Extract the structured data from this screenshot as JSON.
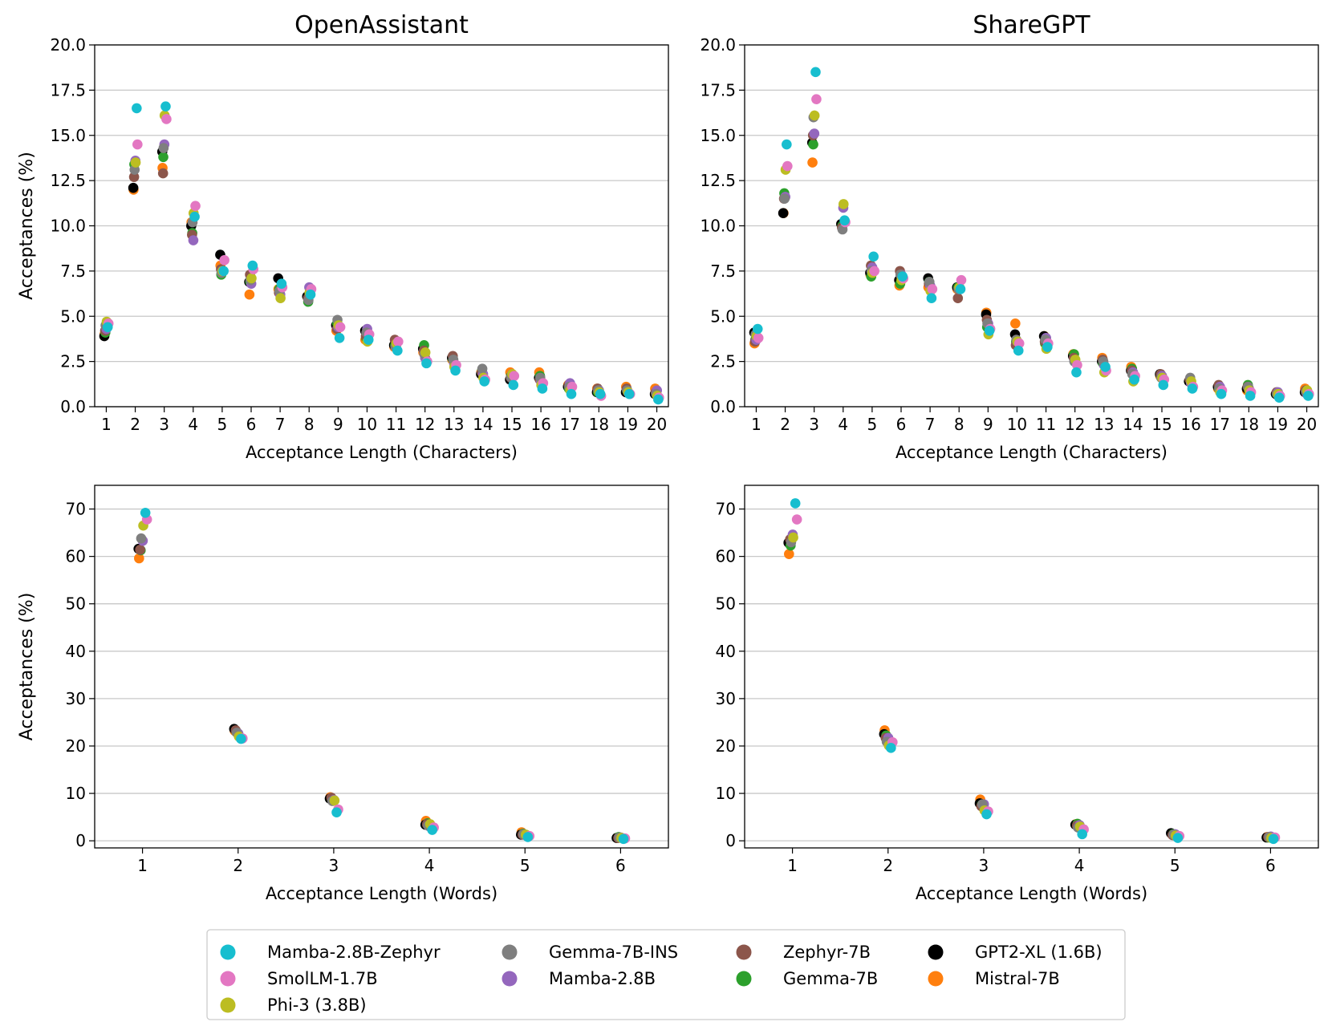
{
  "series": [
    {
      "name": "Mamba-2.8B-Zephyr",
      "color": "#17becf"
    },
    {
      "name": "SmolLM-1.7B",
      "color": "#e377c2"
    },
    {
      "name": "Phi-3 (3.8B)",
      "color": "#bcbd22"
    },
    {
      "name": "Gemma-7B-INS",
      "color": "#7f7f7f"
    },
    {
      "name": "Mamba-2.8B",
      "color": "#9467bd"
    },
    {
      "name": "Zephyr-7B",
      "color": "#8c564b"
    },
    {
      "name": "Gemma-7B",
      "color": "#2ca02c"
    },
    {
      "name": "GPT2-XL (1.6B)",
      "color": "#000000"
    },
    {
      "name": "Mistral-7B",
      "color": "#ff7f0e"
    }
  ],
  "legend": {
    "placement": "bottom-center",
    "columns": [
      [
        "Mamba-2.8B-Zephyr",
        "SmolLM-1.7B",
        "Phi-3 (3.8B)"
      ],
      [
        "Gemma-7B-INS",
        "Mamba-2.8B"
      ],
      [
        "Zephyr-7B",
        "Gemma-7B"
      ],
      [
        "GPT2-XL (1.6B)",
        "Mistral-7B"
      ]
    ]
  },
  "chart_data": [
    {
      "id": "oa-chars",
      "type": "scatter",
      "title": "OpenAssistant",
      "xlabel": "Acceptance Length (Characters)",
      "ylabel": "Acceptances (%)",
      "x": [
        1,
        2,
        3,
        4,
        5,
        6,
        7,
        8,
        9,
        10,
        11,
        12,
        13,
        14,
        15,
        16,
        17,
        18,
        19,
        20
      ],
      "xlim": [
        0.6,
        20.4
      ],
      "ylim": [
        0,
        20
      ],
      "yticks": [
        "0.0",
        "2.5",
        "5.0",
        "7.5",
        "10.0",
        "12.5",
        "15.0",
        "17.5",
        "20.0"
      ],
      "grid": "horizontal",
      "series": {
        "Mamba-2.8B-Zephyr": [
          4.4,
          16.5,
          16.6,
          10.5,
          7.5,
          7.8,
          6.8,
          6.2,
          3.8,
          3.7,
          3.1,
          2.4,
          2.0,
          1.4,
          1.2,
          1.0,
          0.7,
          0.7,
          0.7,
          0.4
        ],
        "SmolLM-1.7B": [
          4.6,
          14.5,
          15.9,
          11.1,
          8.1,
          7.6,
          6.6,
          6.5,
          4.4,
          4.0,
          3.6,
          2.5,
          2.3,
          1.5,
          1.7,
          1.3,
          1.1,
          0.6,
          0.7,
          0.5
        ],
        "Phi-3 (3.8B)": [
          4.7,
          13.5,
          16.1,
          10.7,
          7.5,
          7.1,
          6.0,
          6.3,
          4.5,
          3.6,
          3.5,
          3.0,
          2.2,
          1.6,
          1.8,
          1.2,
          0.9,
          0.8,
          0.8,
          0.6
        ],
        "Gemma-7B-INS": [
          4.5,
          13.1,
          14.3,
          10.2,
          7.4,
          7.0,
          6.4,
          5.9,
          4.8,
          4.1,
          3.3,
          2.9,
          2.6,
          2.1,
          1.6,
          1.6,
          1.1,
          0.9,
          0.9,
          0.7
        ],
        "Mamba-2.8B": [
          4.3,
          13.6,
          14.5,
          9.2,
          7.5,
          6.8,
          6.2,
          6.6,
          4.4,
          4.3,
          3.4,
          2.7,
          2.4,
          1.8,
          1.8,
          1.4,
          1.3,
          0.9,
          0.8,
          0.9
        ],
        "Zephyr-7B": [
          4.2,
          12.7,
          12.9,
          9.5,
          7.6,
          7.3,
          6.3,
          6.0,
          4.3,
          3.9,
          3.7,
          3.1,
          2.8,
          1.9,
          1.6,
          1.5,
          1.2,
          1.0,
          1.0,
          0.8
        ],
        "Gemma-7B": [
          4.1,
          13.4,
          13.8,
          9.6,
          7.3,
          6.9,
          6.5,
          5.8,
          4.6,
          3.8,
          3.4,
          3.4,
          2.6,
          2.0,
          1.7,
          1.7,
          1.0,
          0.8,
          0.9,
          0.8
        ],
        "GPT2-XL (1.6B)": [
          3.9,
          12.1,
          14.1,
          10.0,
          8.4,
          6.9,
          7.1,
          6.1,
          4.5,
          4.2,
          3.4,
          3.2,
          2.7,
          1.8,
          1.5,
          1.6,
          1.1,
          0.8,
          0.8,
          0.7
        ],
        "Mistral-7B": [
          4.0,
          12.0,
          13.2,
          10.2,
          7.8,
          6.2,
          6.5,
          6.1,
          4.2,
          3.7,
          3.3,
          3.0,
          2.6,
          1.9,
          1.9,
          1.9,
          1.2,
          1.0,
          1.1,
          1.0
        ]
      }
    },
    {
      "id": "sg-chars",
      "type": "scatter",
      "title": "ShareGPT",
      "xlabel": "Acceptance Length (Characters)",
      "ylabel": "",
      "x": [
        1,
        2,
        3,
        4,
        5,
        6,
        7,
        8,
        9,
        10,
        11,
        12,
        13,
        14,
        15,
        16,
        17,
        18,
        19,
        20
      ],
      "xlim": [
        0.6,
        20.4
      ],
      "ylim": [
        0,
        20
      ],
      "yticks": [
        "0.0",
        "2.5",
        "5.0",
        "7.5",
        "10.0",
        "12.5",
        "15.0",
        "17.5",
        "20.0"
      ],
      "grid": "horizontal",
      "series": {
        "Mamba-2.8B-Zephyr": [
          4.3,
          14.5,
          18.5,
          10.3,
          8.3,
          7.2,
          6.0,
          6.5,
          4.2,
          3.1,
          3.3,
          1.9,
          2.2,
          1.5,
          1.2,
          1.0,
          0.7,
          0.6,
          0.5,
          0.6
        ],
        "SmolLM-1.7B": [
          3.8,
          13.3,
          17.0,
          10.2,
          7.5,
          7.1,
          6.5,
          7.0,
          4.3,
          3.5,
          3.5,
          2.3,
          2.0,
          1.7,
          1.5,
          1.1,
          0.9,
          0.8,
          0.6,
          0.7
        ],
        "Phi-3 (3.8B)": [
          3.9,
          13.1,
          16.1,
          11.2,
          7.4,
          7.0,
          6.4,
          6.6,
          4.0,
          3.6,
          3.2,
          2.6,
          1.9,
          1.4,
          1.6,
          1.4,
          0.8,
          0.9,
          0.7,
          0.9
        ],
        "Gemma-7B-INS": [
          4.0,
          11.5,
          16.0,
          9.8,
          7.5,
          7.3,
          6.9,
          6.5,
          4.6,
          3.7,
          3.7,
          2.5,
          2.5,
          1.8,
          1.6,
          1.6,
          1.0,
          1.1,
          0.7,
          0.8
        ],
        "Mamba-2.8B": [
          3.7,
          11.6,
          15.1,
          11.0,
          7.7,
          7.3,
          6.7,
          6.5,
          4.6,
          3.6,
          3.8,
          2.5,
          2.3,
          1.9,
          1.7,
          1.3,
          1.1,
          1.0,
          0.8,
          0.7
        ],
        "Zephyr-7B": [
          3.6,
          11.5,
          15.0,
          9.9,
          7.8,
          7.5,
          6.8,
          6.0,
          4.8,
          3.4,
          3.6,
          2.7,
          2.6,
          2.0,
          1.8,
          1.5,
          1.2,
          1.1,
          0.8,
          0.9
        ],
        "Gemma-7B": [
          3.7,
          11.8,
          14.5,
          10.0,
          7.2,
          6.8,
          6.9,
          6.6,
          4.4,
          3.6,
          3.5,
          2.9,
          2.4,
          2.1,
          1.7,
          1.5,
          1.0,
          1.2,
          0.7,
          0.9
        ],
        "GPT2-XL (1.6B)": [
          4.1,
          10.7,
          14.6,
          10.1,
          7.4,
          7.0,
          7.1,
          6.6,
          5.1,
          4.0,
          3.9,
          2.8,
          2.5,
          2.0,
          1.8,
          1.4,
          1.1,
          1.0,
          0.7,
          0.8
        ],
        "Mistral-7B": [
          3.5,
          10.7,
          13.5,
          10.1,
          7.3,
          6.7,
          6.6,
          6.5,
          5.2,
          4.6,
          3.9,
          2.9,
          2.7,
          2.2,
          1.7,
          1.4,
          1.0,
          0.9,
          0.7,
          1.0
        ]
      }
    },
    {
      "id": "oa-words",
      "type": "scatter",
      "title": "",
      "xlabel": "Acceptance Length (Words)",
      "ylabel": "Acceptances (%)",
      "x": [
        1,
        2,
        3,
        4,
        5,
        6
      ],
      "xlim": [
        0.5,
        6.5
      ],
      "ylim": [
        -1.5,
        75
      ],
      "yticks": [
        "0",
        "10",
        "20",
        "30",
        "40",
        "50",
        "60",
        "70"
      ],
      "grid": "horizontal",
      "series": {
        "Mamba-2.8B-Zephyr": [
          69.2,
          21.5,
          6.0,
          2.3,
          0.8,
          0.4
        ],
        "SmolLM-1.7B": [
          67.8,
          21.6,
          6.6,
          2.8,
          1.0,
          0.5
        ],
        "Phi-3 (3.8B)": [
          66.5,
          22.0,
          8.5,
          3.5,
          1.3,
          0.6
        ],
        "Gemma-7B-INS": [
          63.8,
          22.8,
          8.4,
          3.2,
          1.4,
          0.7
        ],
        "Mamba-2.8B": [
          63.3,
          22.6,
          8.6,
          3.0,
          1.2,
          0.7
        ],
        "Zephyr-7B": [
          61.4,
          23.3,
          9.1,
          3.5,
          1.3,
          0.6
        ],
        "Gemma-7B": [
          61.3,
          23.0,
          8.8,
          3.7,
          1.5,
          0.8
        ],
        "GPT2-XL (1.6B)": [
          61.6,
          23.6,
          8.9,
          3.4,
          1.3,
          0.6
        ],
        "Mistral-7B": [
          59.6,
          23.2,
          9.2,
          4.2,
          1.8,
          0.6
        ]
      }
    },
    {
      "id": "sg-words",
      "type": "scatter",
      "title": "",
      "xlabel": "Acceptance Length (Words)",
      "ylabel": "",
      "x": [
        1,
        2,
        3,
        4,
        5,
        6
      ],
      "xlim": [
        0.5,
        6.5
      ],
      "ylim": [
        -1.5,
        75
      ],
      "yticks": [
        "0",
        "10",
        "20",
        "30",
        "40",
        "50",
        "60",
        "70"
      ],
      "grid": "horizontal",
      "series": {
        "Mamba-2.8B-Zephyr": [
          71.2,
          19.6,
          5.6,
          1.4,
          0.6,
          0.4
        ],
        "SmolLM-1.7B": [
          67.8,
          20.8,
          6.2,
          2.4,
          1.0,
          0.7
        ],
        "Phi-3 (3.8B)": [
          64.0,
          20.1,
          6.4,
          3.0,
          1.1,
          0.6
        ],
        "Gemma-7B-INS": [
          63.0,
          20.9,
          7.7,
          2.8,
          1.3,
          0.8
        ],
        "Mamba-2.8B": [
          64.6,
          21.7,
          7.7,
          3.3,
          1.4,
          0.9
        ],
        "Zephyr-7B": [
          63.6,
          21.7,
          7.3,
          3.2,
          1.2,
          0.8
        ],
        "Gemma-7B": [
          62.3,
          22.2,
          7.6,
          3.6,
          1.4,
          0.7
        ],
        "GPT2-XL (1.6B)": [
          62.9,
          22.5,
          7.9,
          3.4,
          1.6,
          0.7
        ],
        "Mistral-7B": [
          60.5,
          23.3,
          8.7,
          3.5,
          1.5,
          0.8
        ]
      }
    }
  ]
}
